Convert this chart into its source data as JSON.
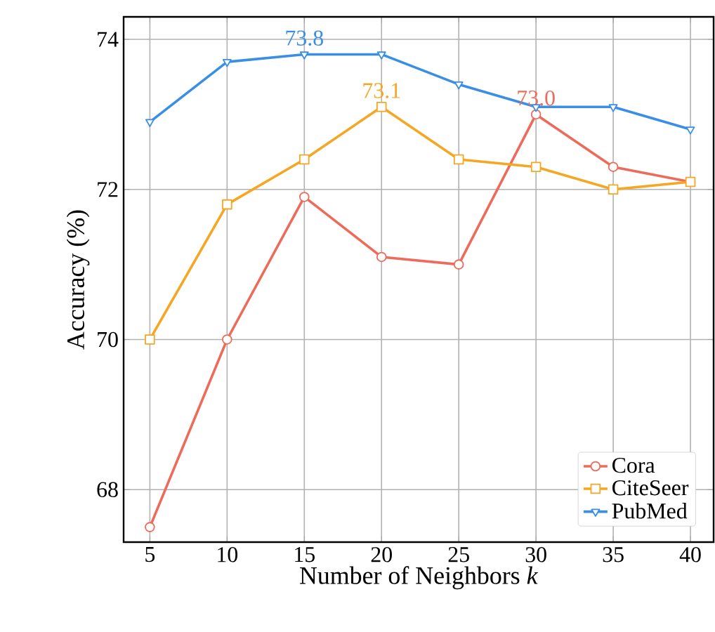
{
  "chart_data": {
    "type": "line",
    "xlabel": "Number of Neighbors *k*",
    "ylabel": "Accuracy (%)",
    "x": [
      5,
      10,
      15,
      20,
      25,
      30,
      35,
      40
    ],
    "series": [
      {
        "name": "Cora",
        "color": "#ee6a5b",
        "marker": "circle",
        "values": [
          67.5,
          70.0,
          71.9,
          71.1,
          71.0,
          73.0,
          72.3,
          72.1
        ]
      },
      {
        "name": "CiteSeer",
        "color": "#f5a623",
        "marker": "square",
        "values": [
          70.0,
          71.8,
          72.4,
          73.1,
          72.4,
          72.3,
          72.0,
          72.1
        ]
      },
      {
        "name": "PubMed",
        "color": "#3a8ee6",
        "marker": "triangle",
        "values": [
          72.9,
          73.7,
          73.8,
          73.8,
          73.4,
          73.1,
          73.1,
          72.8
        ]
      }
    ],
    "annotations": [
      {
        "text": "73.8",
        "x": 15,
        "y": 73.8
      },
      {
        "text": "73.1",
        "x": 20,
        "y": 73.1
      },
      {
        "text": "73.0",
        "x": 30,
        "y": 73.0
      }
    ],
    "xlim": [
      3.3,
      41.5
    ],
    "ylim": [
      67.3,
      74.3
    ],
    "xticks": [
      5,
      10,
      15,
      20,
      25,
      30,
      35,
      40
    ],
    "yticks": [
      68,
      70,
      72,
      74
    ],
    "grid": true,
    "legend": "bottom right"
  }
}
